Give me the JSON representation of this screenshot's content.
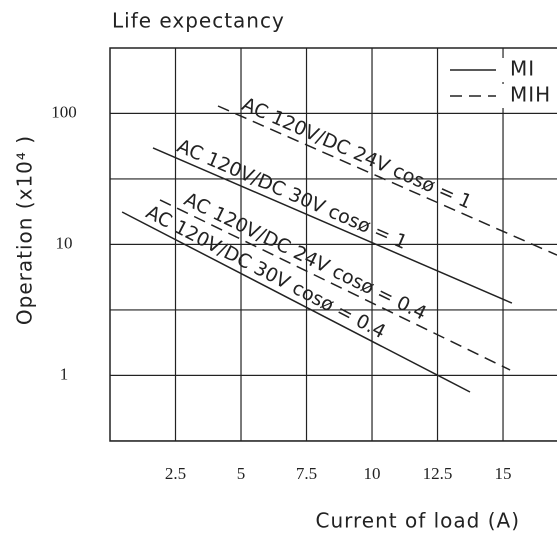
{
  "chart_data": {
    "type": "line",
    "title": "Life expectancy",
    "xlabel": "Current of load (A)",
    "ylabel": "Operation  (x10⁴ )",
    "xlim": [
      0,
      17.06
    ],
    "xticks": [
      2.5,
      5,
      7.5,
      10,
      12.5,
      15
    ],
    "ylim": [
      0.316,
      316
    ],
    "yticks": [
      1,
      10,
      100
    ],
    "log_y": true,
    "grid": true,
    "color": "#222222",
    "legend_position": "upper right",
    "legend": [
      {
        "label": "MI",
        "dashed": false
      },
      {
        "label": "MIH",
        "dashed": true
      }
    ],
    "series": [
      {
        "name": "AC 120V/DC 24V cosø = 1",
        "legend_index": 1,
        "x": [
          4.12,
          17.06
        ],
        "values": [
          114,
          8.3
        ]
      },
      {
        "name": "AC 120V/DC 30V cosø = 1",
        "legend_index": 0,
        "x": [
          1.64,
          15.34
        ],
        "values": [
          54.6,
          3.57
        ]
      },
      {
        "name": "AC 120V/DC 24V cosø = 0.4",
        "legend_index": 1,
        "x": [
          1.91,
          15.27
        ],
        "values": [
          21.9,
          1.1
        ]
      },
      {
        "name": "AC 120V/DC 30V cosø = 0.4",
        "legend_index": 0,
        "x": [
          0.46,
          13.74
        ],
        "values": [
          17.7,
          0.748
        ]
      }
    ]
  }
}
